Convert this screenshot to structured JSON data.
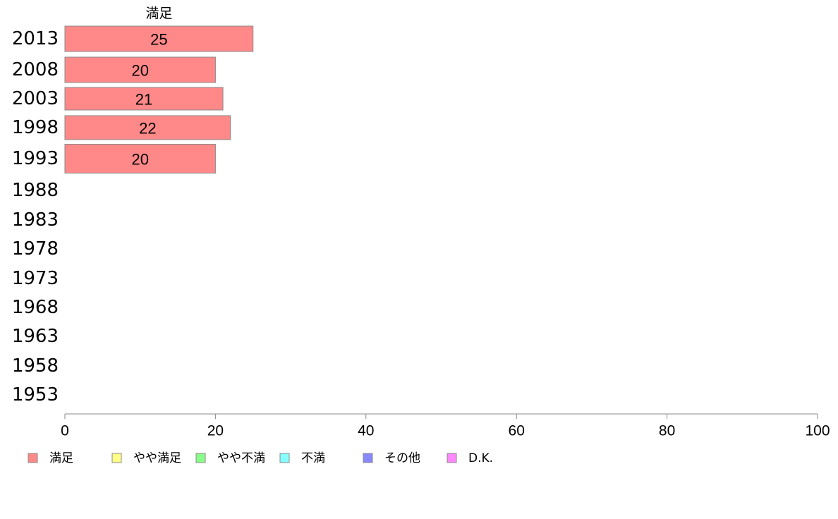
{
  "chart_data": {
    "type": "bar",
    "orientation": "horizontal",
    "stacked": true,
    "categories": [
      "2013",
      "2008",
      "2003",
      "1998",
      "1993",
      "1988",
      "1983",
      "1978",
      "1973",
      "1968",
      "1963",
      "1958",
      "1953"
    ],
    "series": [
      {
        "name": "満足",
        "color": "#ff8888",
        "values": [
          25,
          20,
          21,
          22,
          20,
          null,
          null,
          null,
          null,
          null,
          null,
          null,
          null
        ],
        "header": "満足"
      },
      {
        "name": "やや満足",
        "color": "#ffff88",
        "values": [
          null,
          null,
          null,
          null,
          null,
          null,
          null,
          null,
          null,
          null,
          null,
          null,
          null
        ]
      },
      {
        "name": "やや不満",
        "color": "#88ff88",
        "values": [
          null,
          null,
          null,
          null,
          null,
          null,
          null,
          null,
          null,
          null,
          null,
          null,
          null
        ]
      },
      {
        "name": "不満",
        "color": "#88ffff",
        "values": [
          null,
          null,
          null,
          null,
          null,
          null,
          null,
          null,
          null,
          null,
          null,
          null,
          null
        ]
      },
      {
        "name": "その他",
        "color": "#8888ff",
        "values": [
          null,
          null,
          null,
          null,
          null,
          null,
          null,
          null,
          null,
          null,
          null,
          null,
          null
        ]
      },
      {
        "name": "D.K.",
        "color": "#ff88ff",
        "values": [
          null,
          null,
          null,
          null,
          null,
          null,
          null,
          null,
          null,
          null,
          null,
          null,
          null
        ]
      }
    ],
    "xlim": [
      0,
      100
    ],
    "xticks": [
      0,
      20,
      40,
      60,
      80,
      100
    ],
    "grid": false,
    "legend": "bottom-left"
  }
}
